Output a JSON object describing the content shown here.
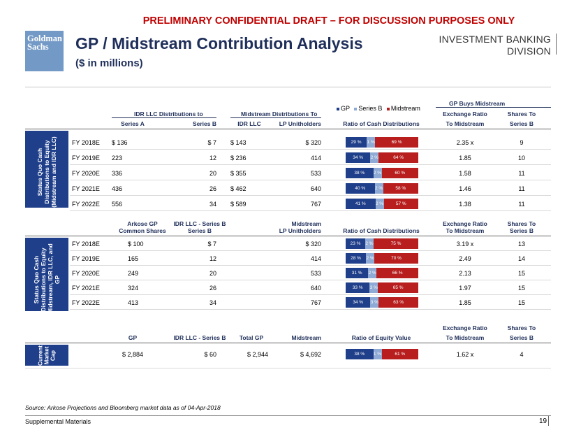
{
  "banner": "PRELIMINARY CONFIDENTIAL DRAFT – FOR DISCUSSION PURPOSES ONLY",
  "logo": {
    "line1": "Goldman",
    "line2": "Sachs"
  },
  "title": "GP / Midstream Contribution Analysis",
  "subtitle": "($ in millions)",
  "division": {
    "line1": "INVESTMENT BANKING",
    "line2": "DIVISION"
  },
  "legend": {
    "gp": "GP",
    "sb": "Series B",
    "mid": "Midstream"
  },
  "colors": {
    "gp": "#1f3f8a",
    "series_b": "#8faad4",
    "midstream": "#b81e1e"
  },
  "sec1": {
    "side_label": "Status Quo Cash Distributions to Equity (Midstream and IDR LLC)",
    "group_idr": "IDR LLC Distributions to",
    "group_mid": "Midstream Distributions To",
    "group_gp": "GP Buys Midstream",
    "cols": [
      "Series A",
      "Series B",
      "IDR LLC",
      "LP Unitholders",
      "Ratio of Cash Distributions",
      "Exchange Ratio",
      "To Midstream",
      "Shares To",
      "Series B"
    ],
    "rows": [
      {
        "year": "FY 2018E",
        "a": "$ 136",
        "b": "$ 7",
        "idr": "$ 143",
        "lp": "$ 320",
        "gp_pct": 29,
        "sb_pct": 1,
        "mid_pct": 69,
        "gp_l": "29 %",
        "sb_l": "1 %",
        "mid_l": "69 %",
        "ratio": "2.35 x",
        "shares": "9"
      },
      {
        "year": "FY 2019E",
        "a": "223",
        "b": "12",
        "idr": "$ 236",
        "lp": "414",
        "gp_pct": 34,
        "sb_pct": 2,
        "mid_pct": 64,
        "gp_l": "34 %",
        "sb_l": "2 %",
        "mid_l": "64 %",
        "ratio": "1.85",
        "shares": "10"
      },
      {
        "year": "FY 2020E",
        "a": "336",
        "b": "20",
        "idr": "$ 355",
        "lp": "533",
        "gp_pct": 38,
        "sb_pct": 2,
        "mid_pct": 60,
        "gp_l": "38 %",
        "sb_l": "2 %",
        "mid_l": "60 %",
        "ratio": "1.58",
        "shares": "11"
      },
      {
        "year": "FY 2021E",
        "a": "436",
        "b": "26",
        "idr": "$ 462",
        "lp": "640",
        "gp_pct": 40,
        "sb_pct": 2,
        "mid_pct": 58,
        "gp_l": "40 %",
        "sb_l": "2 %",
        "mid_l": "58 %",
        "ratio": "1.46",
        "shares": "11"
      },
      {
        "year": "FY 2022E",
        "a": "556",
        "b": "34",
        "idr": "$ 589",
        "lp": "767",
        "gp_pct": 41,
        "sb_pct": 2,
        "mid_pct": 57,
        "gp_l": "41 %",
        "sb_l": "2 %",
        "mid_l": "57 %",
        "ratio": "1.38",
        "shares": "11"
      }
    ]
  },
  "sec2": {
    "side_label": "Status Quo Cash Distributions to Equity (Midstream, IDR LLC, and GP",
    "h_arkose1": "Arkose GP",
    "h_arkose2": "Common Shares",
    "h_idr1": "IDR LLC - Series B",
    "h_idr2": "Series B",
    "h_mid1": "Midstream",
    "h_mid2": "LP Unitholders",
    "h_ratio": "Ratio of Cash Distributions",
    "h_ex1": "Exchange Ratio",
    "h_ex2": "To Midstream",
    "h_sh1": "Shares To",
    "h_sh2": "Series B",
    "rows": [
      {
        "year": "FY 2018E",
        "gp": "$ 100",
        "b": "$ 7",
        "lp": "$ 320",
        "gp_pct": 23,
        "sb_pct": 2,
        "mid_pct": 75,
        "gp_l": "23 %",
        "sb_l": "2 %",
        "mid_l": "75 %",
        "ratio": "3.19 x",
        "shares": "13"
      },
      {
        "year": "FY 2019E",
        "gp": "165",
        "b": "12",
        "lp": "414",
        "gp_pct": 28,
        "sb_pct": 2,
        "mid_pct": 70,
        "gp_l": "28 %",
        "sb_l": "2 %",
        "mid_l": "70 %",
        "ratio": "2.49",
        "shares": "14"
      },
      {
        "year": "FY 2020E",
        "gp": "249",
        "b": "20",
        "lp": "533",
        "gp_pct": 31,
        "sb_pct": 2,
        "mid_pct": 66,
        "gp_l": "31 %",
        "sb_l": "2 %",
        "mid_l": "66 %",
        "ratio": "2.13",
        "shares": "15"
      },
      {
        "year": "FY 2021E",
        "gp": "324",
        "b": "26",
        "lp": "640",
        "gp_pct": 33,
        "sb_pct": 3,
        "mid_pct": 65,
        "gp_l": "33 %",
        "sb_l": "3 %",
        "mid_l": "65 %",
        "ratio": "1.97",
        "shares": "15"
      },
      {
        "year": "FY 2022E",
        "gp": "413",
        "b": "34",
        "lp": "767",
        "gp_pct": 34,
        "sb_pct": 3,
        "mid_pct": 63,
        "gp_l": "34 %",
        "sb_l": "3 %",
        "mid_l": "63 %",
        "ratio": "1.85",
        "shares": "15"
      }
    ]
  },
  "sec3": {
    "side_label": "Current Market Cap",
    "h_gp": "GP",
    "h_idr": "IDR LLC - Series B",
    "h_total": "Total GP",
    "h_mid": "Midstream",
    "h_ratio": "Ratio of Equity Value",
    "h_ex1": "Exchange Ratio",
    "h_ex2": "To Midstream",
    "h_sh1": "Shares To",
    "h_sh2": "Series B",
    "row": {
      "gp": "$ 2,884",
      "b": "$ 60",
      "total": "$ 2,944",
      "mid": "$ 4,692",
      "gp_pct": 38,
      "sb_pct": 1,
      "mid_pct": 61,
      "gp_l": "38 %",
      "sb_l": "1 %",
      "mid_l": "61 %",
      "ratio": "1.62 x",
      "shares": "4"
    }
  },
  "source": "Source: Arkose Projections and Bloomberg market data as of 04-Apr-2018",
  "footer": {
    "left": "Supplemental Materials",
    "page": "19"
  }
}
